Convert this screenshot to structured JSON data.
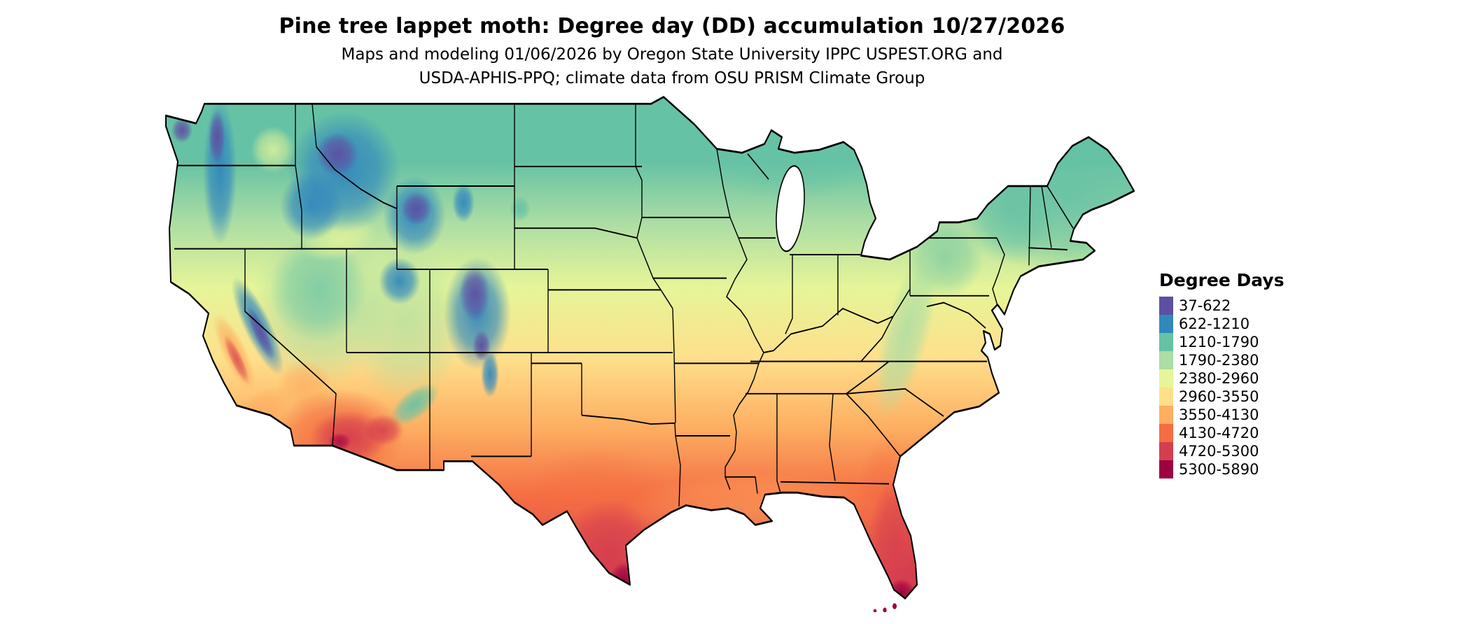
{
  "title": "Pine tree lappet moth: Degree day (DD) accumulation 10/27/2026",
  "subtitle": {
    "line1": "Maps and modeling 01/06/2026 by Oregon State University IPPC USPEST.ORG and",
    "line2": "USDA-APHIS-PPQ; climate data from OSU PRISM Climate Group"
  },
  "map": {
    "type": "choropleth",
    "region": "Contiguous United States",
    "variable": "Degree Days"
  },
  "legend": {
    "title": "Degree Days",
    "entries": [
      {
        "label": "37-622",
        "color": "#5e4fa2"
      },
      {
        "label": "622-1210",
        "color": "#3288bd"
      },
      {
        "label": "1210-1790",
        "color": "#66c2a5"
      },
      {
        "label": "1790-2380",
        "color": "#abdda4"
      },
      {
        "label": "2380-2960",
        "color": "#e6f598"
      },
      {
        "label": "2960-3550",
        "color": "#fee08b"
      },
      {
        "label": "3550-4130",
        "color": "#fdae61"
      },
      {
        "label": "4130-4720",
        "color": "#f46d43"
      },
      {
        "label": "4720-5300",
        "color": "#d53e4f"
      },
      {
        "label": "5300-5890",
        "color": "#9e0142"
      }
    ]
  }
}
